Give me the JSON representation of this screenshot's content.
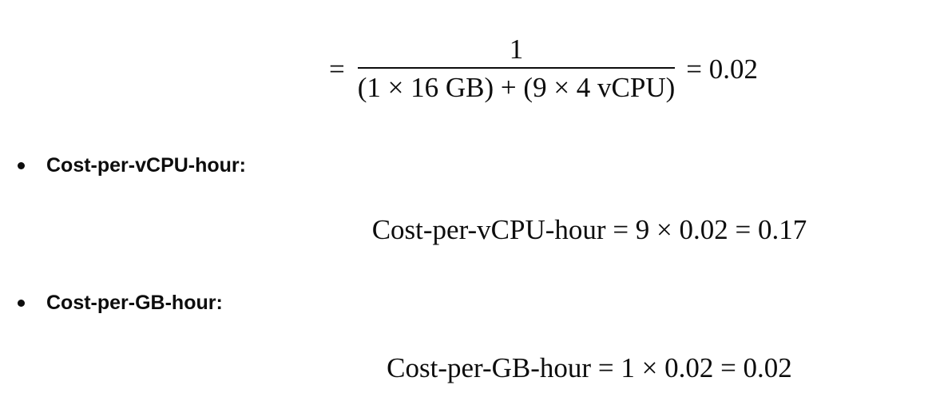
{
  "equation_top": {
    "lhs": "=",
    "numerator": "1",
    "denominator": "(1 × 16 GB) + (9 × 4 vCPU)",
    "rhs": "= 0.02"
  },
  "items": [
    {
      "label": "Cost-per-vCPU-hour:",
      "equation": "Cost-per-vCPU-hour = 9 × 0.02 = 0.17"
    },
    {
      "label": "Cost-per-GB-hour:",
      "equation": "Cost-per-GB-hour = 1 × 0.02 = 0.02"
    }
  ]
}
